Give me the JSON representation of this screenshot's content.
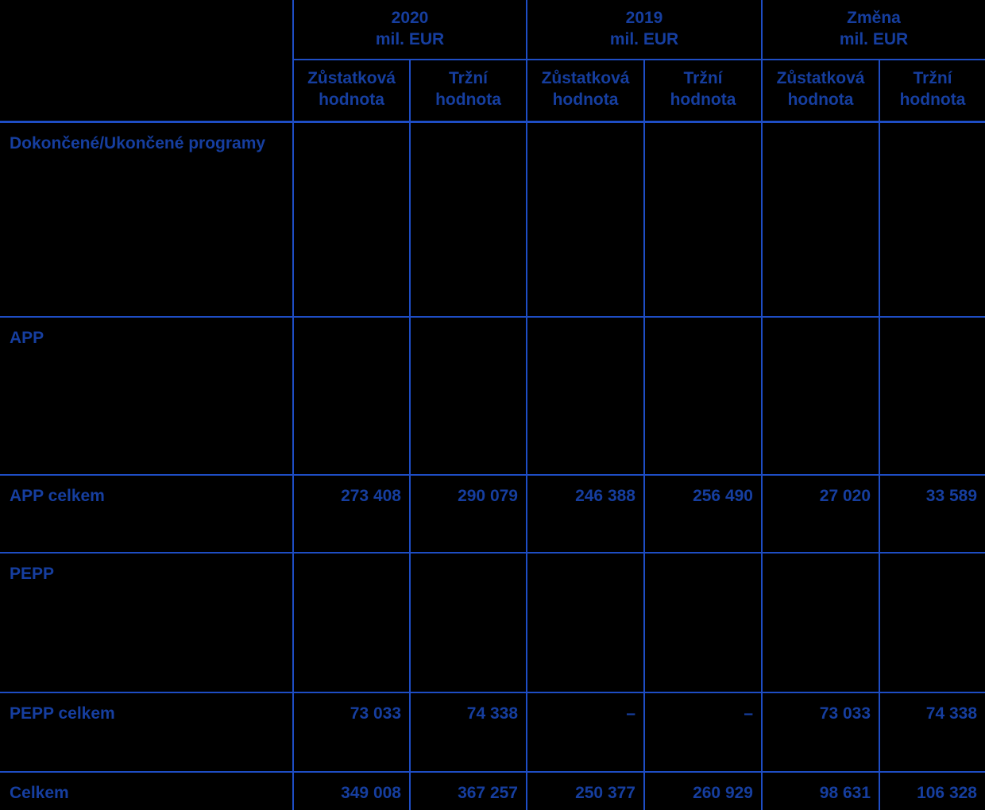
{
  "colors": {
    "background": "#000000",
    "text": "#163e9f",
    "line": "#1e4dc4"
  },
  "header": {
    "groups": [
      {
        "line1": "2020",
        "line2": "mil. EUR"
      },
      {
        "line1": "2019",
        "line2": "mil. EUR"
      },
      {
        "line1": "Změna",
        "line2": "mil. EUR"
      }
    ],
    "subcolumns": [
      {
        "line1": "Zůstatková",
        "line2": "hodnota"
      },
      {
        "line1": "Tržní",
        "line2": "hodnota"
      },
      {
        "line1": "Zůstatková",
        "line2": "hodnota"
      },
      {
        "line1": "Tržní",
        "line2": "hodnota"
      },
      {
        "line1": "Zůstatková",
        "line2": "hodnota"
      },
      {
        "line1": "Tržní",
        "line2": "hodnota"
      }
    ]
  },
  "rows": [
    {
      "kind": "section",
      "label": "Dokončené/Ukončené programy"
    },
    {
      "kind": "section",
      "label": "APP"
    },
    {
      "kind": "data",
      "label": "APP celkem",
      "values": [
        "273 408",
        "290 079",
        "246 388",
        "256 490",
        "27 020",
        "33 589"
      ]
    },
    {
      "kind": "section",
      "label": "PEPP"
    },
    {
      "kind": "data",
      "label": "PEPP celkem",
      "values": [
        "73 033",
        "74 338",
        "–",
        "–",
        "73 033",
        "74 338"
      ]
    },
    {
      "kind": "total",
      "label": "Celkem",
      "values": [
        "349 008",
        "367 257",
        "250 377",
        "260 929",
        "98 631",
        "106 328"
      ]
    }
  ]
}
